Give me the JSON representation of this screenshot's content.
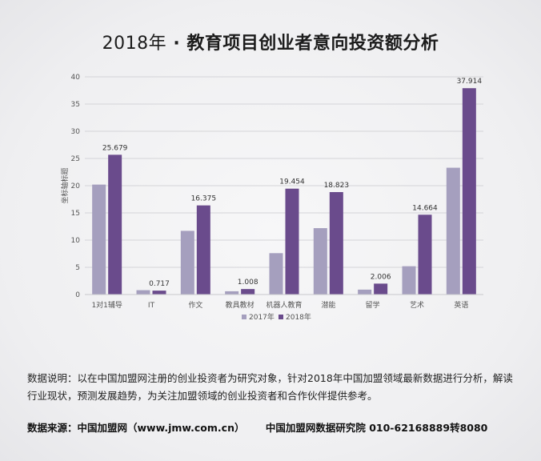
{
  "title": {
    "year": "2018年",
    "dot": "·",
    "main": "教育项目创业者意向投资额分析"
  },
  "chart_data": {
    "type": "bar",
    "categories": [
      "1对1辅导",
      "IT",
      "作文",
      "教具教材",
      "机器人教育",
      "潜能",
      "留学",
      "艺术",
      "英语"
    ],
    "series": [
      {
        "name": "2017年",
        "values": [
          20.2,
          0.8,
          11.7,
          0.6,
          7.6,
          12.2,
          0.9,
          5.2,
          23.3
        ],
        "color": "#a59fbe"
      },
      {
        "name": "2018年",
        "values": [
          25.679,
          0.717,
          16.375,
          1.008,
          19.454,
          18.823,
          2.006,
          14.664,
          37.914
        ],
        "labels": [
          "25.679",
          "0.717",
          "16.375",
          "1.008",
          "19.454",
          "18.823",
          "2.006",
          "14.664",
          "37.914"
        ],
        "color": "#6a4b8c"
      }
    ],
    "ylabel": "坐标轴标题",
    "ylim": [
      0,
      40
    ],
    "yticks": [
      "0",
      "5",
      "10",
      "15",
      "20",
      "25",
      "30",
      "35",
      "40"
    ],
    "grid": true,
    "legend_position": "bottom"
  },
  "notes": {
    "text": "数据说明：以在中国加盟网注册的创业投资者为研究对象，针对2018年中国加盟领域最新数据进行分析，解读行业现状，预测发展趋势，为关注加盟领域的创业投资者和合作伙伴提供参考。"
  },
  "source": {
    "label": "数据来源：中国加盟网（www.jmw.com.cn）",
    "institute": "中国加盟网数据研究院",
    "phone": "010-62168889转8080"
  }
}
